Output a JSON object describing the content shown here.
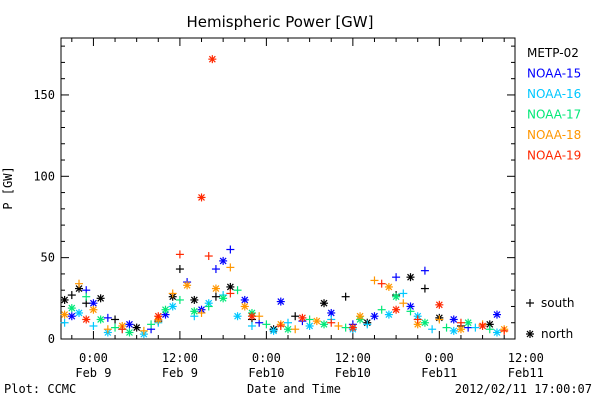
{
  "chart_data": {
    "type": "scatter",
    "title": "Hemispheric Power [GW]",
    "ylabel": "P [GW]",
    "xlabel": "Date and Time",
    "ylim": [
      0,
      185
    ],
    "xlim": [
      -4.5,
      58.5
    ],
    "y_ticks": [
      0,
      50,
      100,
      150
    ],
    "x_ticks": [
      {
        "x": 0,
        "line1": "0:00",
        "line2": "Feb 9"
      },
      {
        "x": 12,
        "line1": "12:00",
        "line2": "Feb 9"
      },
      {
        "x": 24,
        "line1": "0:00",
        "line2": "Feb10"
      },
      {
        "x": 36,
        "line1": "12:00",
        "line2": "Feb10"
      },
      {
        "x": 48,
        "line1": "0:00",
        "line2": "Feb11"
      },
      {
        "x": 60,
        "line1": "12:00",
        "line2": "Feb11"
      }
    ],
    "grid": false,
    "legend_position": "right",
    "series": [
      {
        "name": "METP-02",
        "color": "#000000",
        "points": [
          [
            -4,
            24,
            "n"
          ],
          [
            -3,
            27,
            "s"
          ],
          [
            -2,
            31,
            "n"
          ],
          [
            -1,
            22,
            "s"
          ],
          [
            1,
            25,
            "n"
          ],
          [
            3,
            12,
            "s"
          ],
          [
            6,
            7,
            "n"
          ],
          [
            9,
            11,
            "s"
          ],
          [
            11,
            26,
            "n"
          ],
          [
            12,
            43,
            "s"
          ],
          [
            14,
            24,
            "n"
          ],
          [
            17,
            26,
            "s"
          ],
          [
            19,
            32,
            "n"
          ],
          [
            22,
            12,
            "s"
          ],
          [
            25,
            6,
            "n"
          ],
          [
            28,
            14,
            "s"
          ],
          [
            32,
            22,
            "n"
          ],
          [
            35,
            26,
            "s"
          ],
          [
            38,
            10,
            "n"
          ],
          [
            42,
            27,
            "s"
          ],
          [
            44,
            38,
            "n"
          ],
          [
            46,
            31,
            "s"
          ],
          [
            48,
            13,
            "n"
          ],
          [
            51,
            8,
            "s"
          ],
          [
            55,
            9,
            "n"
          ]
        ]
      },
      {
        "name": "NOAA-15",
        "color": "#0000ff",
        "points": [
          [
            -3,
            14,
            "n"
          ],
          [
            -1,
            30,
            "s"
          ],
          [
            0,
            22,
            "n"
          ],
          [
            2,
            13,
            "s"
          ],
          [
            5,
            9,
            "n"
          ],
          [
            8,
            6,
            "s"
          ],
          [
            10,
            15,
            "n"
          ],
          [
            13,
            35,
            "s"
          ],
          [
            15,
            18,
            "n"
          ],
          [
            17,
            43,
            "s"
          ],
          [
            18,
            48,
            "n"
          ],
          [
            19,
            55,
            "s"
          ],
          [
            21,
            24,
            "n"
          ],
          [
            23,
            10,
            "s"
          ],
          [
            26,
            23,
            "n"
          ],
          [
            29,
            11,
            "s"
          ],
          [
            33,
            16,
            "n"
          ],
          [
            36,
            9,
            "s"
          ],
          [
            39,
            14,
            "n"
          ],
          [
            42,
            38,
            "s"
          ],
          [
            44,
            20,
            "n"
          ],
          [
            46,
            42,
            "s"
          ],
          [
            50,
            12,
            "n"
          ],
          [
            52,
            7,
            "s"
          ],
          [
            56,
            15,
            "n"
          ]
        ]
      },
      {
        "name": "NOAA-16",
        "color": "#00c8ff",
        "points": [
          [
            -4,
            10,
            "s"
          ],
          [
            -2,
            16,
            "n"
          ],
          [
            0,
            8,
            "s"
          ],
          [
            2,
            4,
            "n"
          ],
          [
            4,
            6,
            "s"
          ],
          [
            7,
            3,
            "n"
          ],
          [
            9,
            10,
            "s"
          ],
          [
            11,
            20,
            "n"
          ],
          [
            14,
            14,
            "s"
          ],
          [
            16,
            22,
            "n"
          ],
          [
            18,
            27,
            "s"
          ],
          [
            20,
            14,
            "n"
          ],
          [
            22,
            8,
            "s"
          ],
          [
            25,
            5,
            "n"
          ],
          [
            27,
            10,
            "s"
          ],
          [
            30,
            8,
            "n"
          ],
          [
            33,
            12,
            "s"
          ],
          [
            36,
            6,
            "n"
          ],
          [
            38,
            9,
            "s"
          ],
          [
            41,
            15,
            "n"
          ],
          [
            43,
            28,
            "s"
          ],
          [
            45,
            14,
            "n"
          ],
          [
            47,
            6,
            "s"
          ],
          [
            50,
            5,
            "n"
          ],
          [
            53,
            7,
            "s"
          ],
          [
            56,
            4,
            "n"
          ]
        ]
      },
      {
        "name": "NOAA-17",
        "color": "#00e878",
        "points": [
          [
            -3,
            19,
            "n"
          ],
          [
            -1,
            26,
            "s"
          ],
          [
            1,
            12,
            "n"
          ],
          [
            3,
            7,
            "s"
          ],
          [
            5,
            4,
            "n"
          ],
          [
            8,
            9,
            "s"
          ],
          [
            10,
            18,
            "n"
          ],
          [
            12,
            24,
            "s"
          ],
          [
            14,
            17,
            "n"
          ],
          [
            16,
            20,
            "s"
          ],
          [
            18,
            25,
            "n"
          ],
          [
            20,
            30,
            "s"
          ],
          [
            22,
            16,
            "n"
          ],
          [
            24,
            9,
            "s"
          ],
          [
            27,
            6,
            "n"
          ],
          [
            30,
            12,
            "s"
          ],
          [
            32,
            9,
            "n"
          ],
          [
            35,
            7,
            "s"
          ],
          [
            37,
            12,
            "n"
          ],
          [
            40,
            18,
            "s"
          ],
          [
            42,
            26,
            "n"
          ],
          [
            44,
            17,
            "s"
          ],
          [
            46,
            10,
            "n"
          ],
          [
            49,
            7,
            "s"
          ],
          [
            52,
            10,
            "n"
          ],
          [
            55,
            6,
            "s"
          ]
        ]
      },
      {
        "name": "NOAA-18",
        "color": "#ff9600",
        "points": [
          [
            -4,
            15,
            "n"
          ],
          [
            -2,
            34,
            "s"
          ],
          [
            0,
            18,
            "n"
          ],
          [
            2,
            6,
            "s"
          ],
          [
            4,
            8,
            "n"
          ],
          [
            7,
            5,
            "s"
          ],
          [
            9,
            12,
            "n"
          ],
          [
            11,
            28,
            "s"
          ],
          [
            13,
            33,
            "n"
          ],
          [
            15,
            16,
            "s"
          ],
          [
            17,
            31,
            "n"
          ],
          [
            19,
            44,
            "s"
          ],
          [
            21,
            20,
            "n"
          ],
          [
            23,
            14,
            "s"
          ],
          [
            26,
            9,
            "n"
          ],
          [
            28,
            6,
            "s"
          ],
          [
            31,
            11,
            "n"
          ],
          [
            34,
            8,
            "s"
          ],
          [
            37,
            14,
            "n"
          ],
          [
            39,
            36,
            "s"
          ],
          [
            41,
            32,
            "n"
          ],
          [
            43,
            22,
            "s"
          ],
          [
            45,
            9,
            "n"
          ],
          [
            48,
            12,
            "s"
          ],
          [
            51,
            6,
            "n"
          ],
          [
            54,
            9,
            "s"
          ],
          [
            57,
            6,
            "n"
          ]
        ]
      },
      {
        "name": "NOAA-19",
        "color": "#ff2800",
        "points": [
          [
            -1,
            12,
            "n"
          ],
          [
            4,
            6,
            "s"
          ],
          [
            9,
            14,
            "n"
          ],
          [
            12,
            52,
            "s"
          ],
          [
            15,
            87,
            "n"
          ],
          [
            16,
            51,
            "s"
          ],
          [
            16.5,
            172,
            "n"
          ],
          [
            19,
            28,
            "s"
          ],
          [
            22,
            14,
            "n"
          ],
          [
            26,
            8,
            "s"
          ],
          [
            29,
            13,
            "n"
          ],
          [
            33,
            10,
            "s"
          ],
          [
            36,
            7,
            "n"
          ],
          [
            40,
            34,
            "s"
          ],
          [
            42,
            18,
            "n"
          ],
          [
            45,
            12,
            "s"
          ],
          [
            48,
            21,
            "n"
          ],
          [
            51,
            10,
            "s"
          ],
          [
            54,
            8,
            "n"
          ],
          [
            57,
            5,
            "s"
          ]
        ]
      }
    ],
    "marker_key": [
      {
        "symbol": "+",
        "label": "south"
      },
      {
        "symbol": "*",
        "label": "north"
      }
    ]
  },
  "footer": {
    "left": "Plot: CCMC",
    "right": "2012/02/11 17:00:07"
  }
}
